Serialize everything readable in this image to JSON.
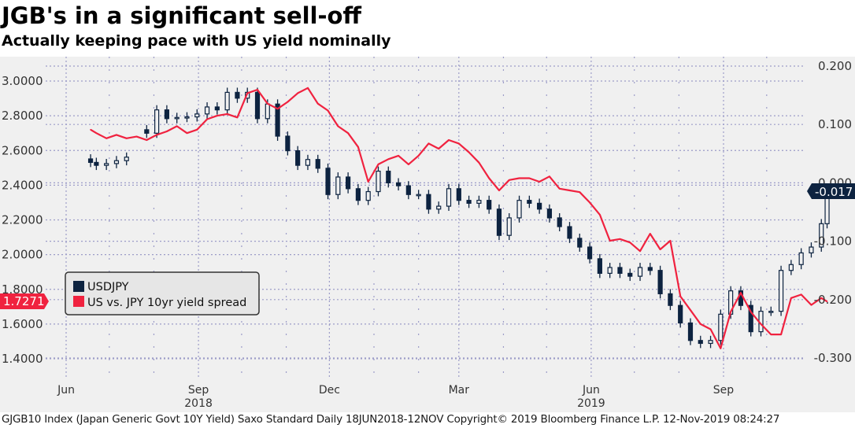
{
  "header": {
    "title": "JGB's in a significant sell-off",
    "subtitle": "Actually keeping pace with US yield nominally"
  },
  "footer": {
    "text": "GJGB10 Index (Japan Generic Govt 10Y Yield) Saxo Standard  Daily 18JUN2018-12NOV  Copyright© 2019 Bloomberg Finance L.P.  12-Nov-2019 08:24:27"
  },
  "colors": {
    "candle": "#0d2340",
    "spread": "#f0223f",
    "grid": "#9c9cc8",
    "background": "#f0f0f0"
  },
  "chart_data": {
    "type": "line",
    "title": "JGB's in a significant sell-off",
    "subtitle": "Actually keeping pace with US yield nominally",
    "xlabel": "",
    "ylabel_left": "",
    "ylabel_right": "",
    "grid": true,
    "legend_position": "bottom-left",
    "legend": [
      {
        "label": "USDJPY",
        "color": "#0d2340"
      },
      {
        "label": "US vs. JPY 10yr yield spread",
        "color": "#f0223f"
      }
    ],
    "x_range": [
      "2018-06-18",
      "2019-11-12"
    ],
    "x_ticks": [
      {
        "label": "Jun",
        "date": "2018-06-01"
      },
      {
        "label": "Sep",
        "date": "2018-09-01"
      },
      {
        "label": "Dec",
        "date": "2018-12-01"
      },
      {
        "label": "Mar",
        "date": "2019-03-01"
      },
      {
        "label": "Jun",
        "date": "2019-06-01"
      },
      {
        "label": "Sep",
        "date": "2019-09-01"
      }
    ],
    "x_year_labels": [
      {
        "label": "2018",
        "date": "2018-09-01"
      },
      {
        "label": "2019",
        "date": "2019-06-01"
      }
    ],
    "left_axis": {
      "ylim": [
        1.35,
        3.08
      ],
      "ticks": [
        "3.0000",
        "2.8000",
        "2.6000",
        "2.4000",
        "2.2000",
        "2.0000",
        "1.8000",
        "1.6000",
        "1.4000"
      ],
      "tick_values": [
        3.0,
        2.8,
        2.6,
        2.4,
        2.2,
        2.0,
        1.8,
        1.6,
        1.4
      ],
      "last_value_label": "1.7271"
    },
    "right_axis": {
      "ylim": [
        -0.32,
        0.225
      ],
      "ticks": [
        "0.200",
        "0.100",
        "0.000",
        "-0.100",
        "-0.200",
        "-0.300"
      ],
      "tick_values": [
        0.2,
        0.1,
        0.0,
        -0.1,
        -0.2,
        -0.3
      ],
      "last_value_label": "-0.017"
    },
    "series": [
      {
        "name": "US vs. JPY 10yr yield spread",
        "axis": "left",
        "style": "line",
        "x": [
          "2018-06-18",
          "2018-06-22",
          "2018-06-29",
          "2018-07-06",
          "2018-07-13",
          "2018-07-20",
          "2018-07-27",
          "2018-08-03",
          "2018-08-10",
          "2018-08-17",
          "2018-08-24",
          "2018-08-31",
          "2018-09-07",
          "2018-09-14",
          "2018-09-21",
          "2018-09-28",
          "2018-10-05",
          "2018-10-12",
          "2018-10-19",
          "2018-10-26",
          "2018-11-02",
          "2018-11-09",
          "2018-11-16",
          "2018-11-23",
          "2018-11-30",
          "2018-12-07",
          "2018-12-14",
          "2018-12-21",
          "2018-12-28",
          "2019-01-04",
          "2019-01-11",
          "2019-01-18",
          "2019-01-25",
          "2019-02-01",
          "2019-02-08",
          "2019-02-15",
          "2019-02-22",
          "2019-03-01",
          "2019-03-08",
          "2019-03-15",
          "2019-03-22",
          "2019-03-29",
          "2019-04-05",
          "2019-04-12",
          "2019-04-19",
          "2019-04-26",
          "2019-05-03",
          "2019-05-10",
          "2019-05-17",
          "2019-05-24",
          "2019-05-31",
          "2019-06-07",
          "2019-06-14",
          "2019-06-21",
          "2019-06-28",
          "2019-07-05",
          "2019-07-12",
          "2019-07-19",
          "2019-07-26",
          "2019-08-02",
          "2019-08-09",
          "2019-08-16",
          "2019-08-23",
          "2019-08-30",
          "2019-09-06",
          "2019-09-13",
          "2019-09-20",
          "2019-09-27",
          "2019-10-04",
          "2019-10-11",
          "2019-10-18",
          "2019-10-25",
          "2019-11-01",
          "2019-11-08",
          "2019-11-12"
        ],
        "values": [
          2.72,
          2.7,
          2.67,
          2.69,
          2.67,
          2.68,
          2.66,
          2.69,
          2.71,
          2.74,
          2.7,
          2.72,
          2.78,
          2.8,
          2.81,
          2.79,
          2.93,
          2.95,
          2.87,
          2.84,
          2.88,
          2.93,
          2.96,
          2.87,
          2.83,
          2.74,
          2.7,
          2.62,
          2.42,
          2.52,
          2.55,
          2.57,
          2.52,
          2.57,
          2.64,
          2.61,
          2.66,
          2.64,
          2.59,
          2.53,
          2.44,
          2.37,
          2.43,
          2.44,
          2.44,
          2.42,
          2.45,
          2.38,
          2.37,
          2.36,
          2.3,
          2.23,
          2.08,
          2.09,
          2.07,
          2.02,
          2.12,
          2.03,
          2.08,
          1.76,
          1.68,
          1.6,
          1.57,
          1.46,
          1.67,
          1.78,
          1.67,
          1.6,
          1.54,
          1.54,
          1.75,
          1.77,
          1.71,
          1.75,
          1.73
        ]
      },
      {
        "name": "USDJPY",
        "axis": "right",
        "style": "candlestick",
        "x": [
          "2018-06-18",
          "2018-06-22",
          "2018-06-29",
          "2018-07-06",
          "2018-07-13",
          "2018-07-20",
          "2018-07-27",
          "2018-08-03",
          "2018-08-10",
          "2018-08-17",
          "2018-08-24",
          "2018-08-31",
          "2018-09-07",
          "2018-09-14",
          "2018-09-21",
          "2018-09-28",
          "2018-10-05",
          "2018-10-12",
          "2018-10-19",
          "2018-10-26",
          "2018-11-02",
          "2018-11-09",
          "2018-11-16",
          "2018-11-23",
          "2018-11-30",
          "2018-12-07",
          "2018-12-14",
          "2018-12-21",
          "2018-12-28",
          "2019-01-04",
          "2019-01-11",
          "2019-01-18",
          "2019-01-25",
          "2019-02-01",
          "2019-02-08",
          "2019-02-15",
          "2019-02-22",
          "2019-03-01",
          "2019-03-08",
          "2019-03-15",
          "2019-03-22",
          "2019-03-29",
          "2019-04-05",
          "2019-04-12",
          "2019-04-19",
          "2019-04-26",
          "2019-05-03",
          "2019-05-10",
          "2019-05-17",
          "2019-05-24",
          "2019-05-31",
          "2019-06-07",
          "2019-06-14",
          "2019-06-21",
          "2019-06-28",
          "2019-07-05",
          "2019-07-12",
          "2019-07-19",
          "2019-07-26",
          "2019-08-02",
          "2019-08-09",
          "2019-08-16",
          "2019-08-23",
          "2019-08-30",
          "2019-09-06",
          "2019-09-13",
          "2019-09-20",
          "2019-09-27",
          "2019-10-04",
          "2019-10-11",
          "2019-10-18",
          "2019-10-25",
          "2019-11-01",
          "2019-11-08",
          "2019-11-12"
        ],
        "values": [
          0.035,
          0.03,
          0.033,
          0.038,
          0.044,
          null,
          0.085,
          0.125,
          0.11,
          0.112,
          0.113,
          0.118,
          0.13,
          0.125,
          0.155,
          0.145,
          0.155,
          0.11,
          0.135,
          0.08,
          0.055,
          0.03,
          0.04,
          0.025,
          -0.02,
          0.01,
          -0.01,
          -0.03,
          -0.015,
          0.02,
          0.0,
          -0.005,
          -0.02,
          -0.02,
          -0.045,
          -0.04,
          -0.01,
          -0.03,
          -0.035,
          -0.03,
          -0.045,
          -0.09,
          -0.06,
          -0.03,
          -0.035,
          -0.045,
          -0.06,
          -0.075,
          -0.095,
          -0.11,
          -0.13,
          -0.155,
          -0.145,
          -0.155,
          -0.16,
          -0.145,
          -0.15,
          -0.19,
          -0.21,
          -0.24,
          -0.27,
          -0.275,
          -0.27,
          -0.225,
          -0.185,
          -0.21,
          -0.255,
          -0.22,
          -0.22,
          -0.15,
          -0.14,
          -0.12,
          -0.11,
          -0.07,
          -0.017
        ]
      }
    ]
  }
}
